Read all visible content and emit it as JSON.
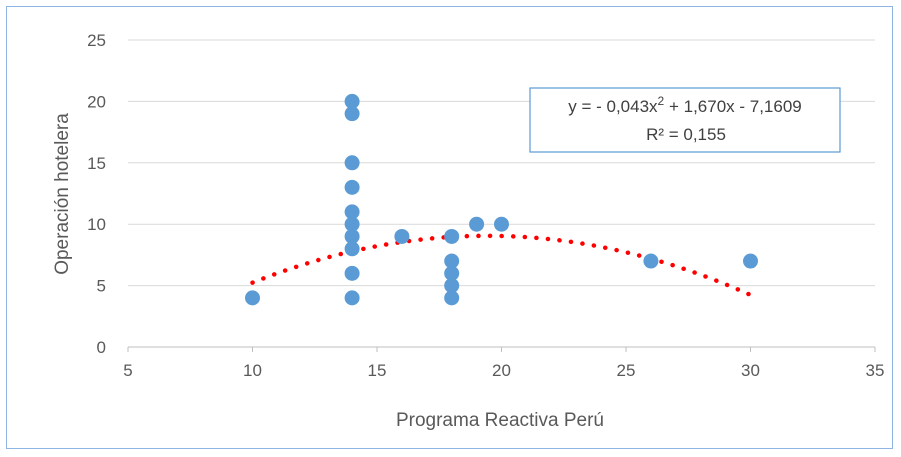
{
  "chart_data": {
    "type": "scatter",
    "title": "",
    "xlabel": "Programa Reactiva Perú",
    "ylabel": "Operación hotelera",
    "xlim": [
      5,
      35
    ],
    "ylim": [
      0,
      25
    ],
    "x_ticks": [
      5,
      10,
      15,
      20,
      25,
      30,
      35
    ],
    "y_ticks": [
      0,
      5,
      10,
      15,
      20,
      25
    ],
    "grid": "horizontal",
    "legend": "none",
    "marker_color": "#5b9bd5",
    "trendline_color": "#ff0000",
    "points": [
      {
        "x": 10,
        "y": 4
      },
      {
        "x": 14,
        "y": 20
      },
      {
        "x": 14,
        "y": 19
      },
      {
        "x": 14,
        "y": 15
      },
      {
        "x": 14,
        "y": 13
      },
      {
        "x": 14,
        "y": 11
      },
      {
        "x": 14,
        "y": 10
      },
      {
        "x": 14,
        "y": 9
      },
      {
        "x": 14,
        "y": 8
      },
      {
        "x": 14,
        "y": 6
      },
      {
        "x": 14,
        "y": 4
      },
      {
        "x": 16,
        "y": 9
      },
      {
        "x": 18,
        "y": 9
      },
      {
        "x": 18,
        "y": 7
      },
      {
        "x": 18,
        "y": 6
      },
      {
        "x": 18,
        "y": 5
      },
      {
        "x": 18,
        "y": 4
      },
      {
        "x": 19,
        "y": 10
      },
      {
        "x": 20,
        "y": 10
      },
      {
        "x": 26,
        "y": 7
      },
      {
        "x": 30,
        "y": 7
      }
    ],
    "trendline": {
      "type": "polynomial",
      "order": 2,
      "coefficients": [
        -0.043,
        1.67,
        -7.1609
      ],
      "x_range": [
        10,
        30
      ]
    },
    "annotation": {
      "line1_prefix": "y = - 0,043x",
      "line1_sup": "2",
      "line1_suffix": " + 1,670x - 7,1609",
      "line2": "R² = 0,155"
    }
  }
}
